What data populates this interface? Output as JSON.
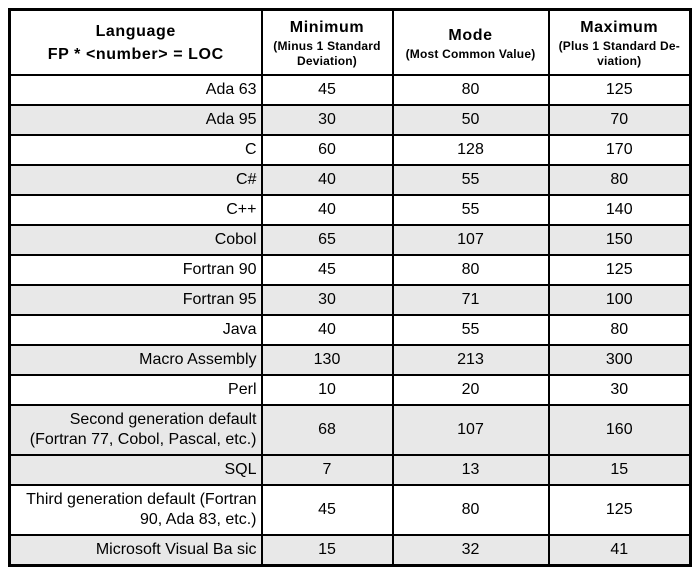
{
  "table": {
    "header": {
      "language_title": "Language",
      "language_subtitle": "FP * <number> = LOC",
      "columns": [
        {
          "title": "Minimum",
          "subtitle": "(Minus 1 Standard Deviation)"
        },
        {
          "title": "Mode",
          "subtitle": "(Most Common Value)"
        },
        {
          "title": "Maximum",
          "subtitle": "(Plus 1 Standard De-viation)"
        }
      ]
    },
    "rows": [
      {
        "language": "Ada 63",
        "minimum": 45,
        "mode": 80,
        "maximum": 125,
        "shaded": false
      },
      {
        "language": "Ada 95",
        "minimum": 30,
        "mode": 50,
        "maximum": 70,
        "shaded": true
      },
      {
        "language": "C",
        "minimum": 60,
        "mode": 128,
        "maximum": 170,
        "shaded": false
      },
      {
        "language": "C#",
        "minimum": 40,
        "mode": 55,
        "maximum": 80,
        "shaded": true
      },
      {
        "language": "C++",
        "minimum": 40,
        "mode": 55,
        "maximum": 140,
        "shaded": false
      },
      {
        "language": "Cobol",
        "minimum": 65,
        "mode": 107,
        "maximum": 150,
        "shaded": true
      },
      {
        "language": "Fortran 90",
        "minimum": 45,
        "mode": 80,
        "maximum": 125,
        "shaded": false
      },
      {
        "language": "Fortran 95",
        "minimum": 30,
        "mode": 71,
        "maximum": 100,
        "shaded": true
      },
      {
        "language": "Java",
        "minimum": 40,
        "mode": 55,
        "maximum": 80,
        "shaded": false
      },
      {
        "language": "Macro Assembly",
        "minimum": 130,
        "mode": 213,
        "maximum": 300,
        "shaded": true
      },
      {
        "language": "Perl",
        "minimum": 10,
        "mode": 20,
        "maximum": 30,
        "shaded": false
      },
      {
        "language": "Second generation default (Fortran 77, Cobol, Pascal, etc.)",
        "minimum": 68,
        "mode": 107,
        "maximum": 160,
        "shaded": true
      },
      {
        "language": "SQL",
        "minimum": 7,
        "mode": 13,
        "maximum": 15,
        "shaded": true
      },
      {
        "language": "Third generation default (Fortran 90, Ada 83, etc.)",
        "minimum": 45,
        "mode": 80,
        "maximum": 125,
        "shaded": false
      },
      {
        "language": "Microsoft Visual Ba sic",
        "minimum": 15,
        "mode": 32,
        "maximum": 41,
        "shaded": true
      }
    ]
  },
  "colors": {
    "row_shade": "#e8e8e8",
    "border": "#000000",
    "background": "#ffffff"
  }
}
